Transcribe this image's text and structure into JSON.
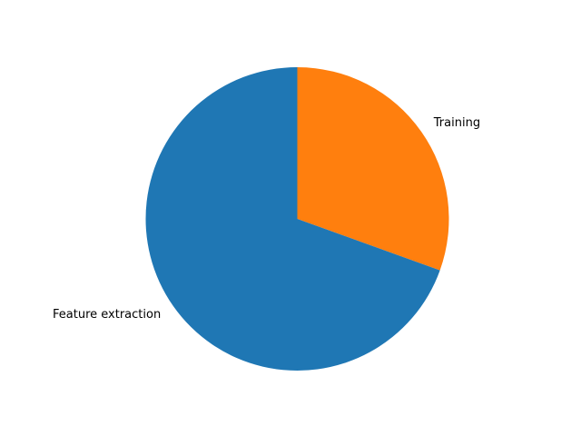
{
  "chart_data": {
    "type": "pie",
    "title": "",
    "start_angle_deg": 90,
    "direction": "clockwise",
    "slices": [
      {
        "label": "Training",
        "value": 30.5,
        "color": "#ff7f0e"
      },
      {
        "label": "Feature extraction",
        "value": 69.5,
        "color": "#1f77b4"
      }
    ],
    "legend": false
  }
}
